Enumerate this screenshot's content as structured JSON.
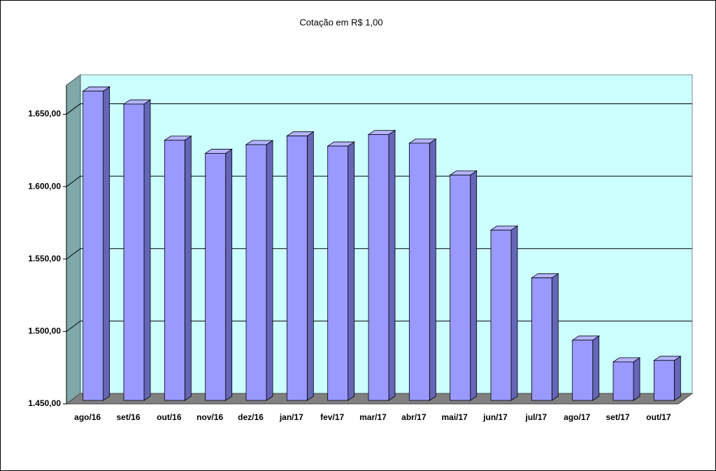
{
  "chart_data": {
    "type": "bar3d",
    "title": "Cotação em R$ 1,00",
    "categories": [
      "ago/16",
      "set/16",
      "out/16",
      "nov/16",
      "dez/16",
      "jan/17",
      "fev/17",
      "mar/17",
      "abr/17",
      "mai/17",
      "jun/17",
      "jul/17",
      "ago/17",
      "set/17",
      "out/17"
    ],
    "values": [
      1666,
      1657,
      1632,
      1623,
      1629,
      1635,
      1628,
      1636,
      1630,
      1608,
      1570,
      1537,
      1494,
      1479,
      1480
    ],
    "color": "#9999ff",
    "ylim": [
      1450,
      1670
    ],
    "yticks": [
      {
        "value": 1450,
        "label": "1.450,00"
      },
      {
        "value": 1500,
        "label": "1.500,00"
      },
      {
        "value": 1550,
        "label": "1.550,00"
      },
      {
        "value": 1600,
        "label": "1.600,00"
      },
      {
        "value": 1650,
        "label": "1.650,00"
      }
    ],
    "grid": true
  }
}
